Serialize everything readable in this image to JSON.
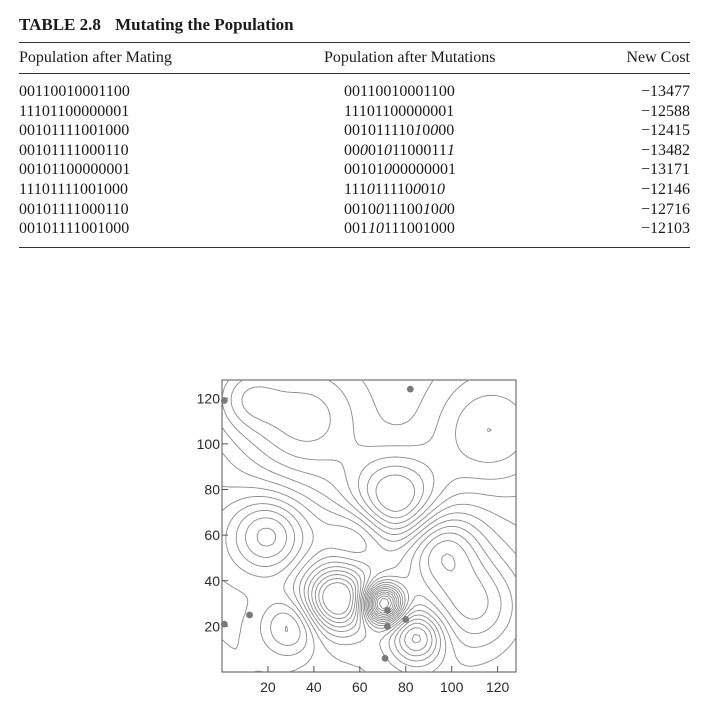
{
  "table": {
    "number": "TABLE 2.8",
    "title": "Mutating the Population",
    "headers": [
      "Population after Mating",
      "Population after Mutations",
      "New Cost"
    ],
    "rows": [
      {
        "mating": "00110010001100",
        "mutation": [
          [
            "00110010001100",
            false
          ]
        ],
        "cost": "−13477"
      },
      {
        "mating": "11101100000001",
        "mutation": [
          [
            "11101100000001",
            false
          ]
        ],
        "cost": "−12588"
      },
      {
        "mating": "00101111001000",
        "mutation": [
          [
            "001011110",
            false
          ],
          [
            "1",
            true
          ],
          [
            "0",
            false
          ],
          [
            "0",
            true
          ],
          [
            "00",
            false
          ]
        ],
        "cost": "−12415"
      },
      {
        "mating": "00101111000110",
        "mutation": [
          [
            "00",
            false
          ],
          [
            "0",
            true
          ],
          [
            "01",
            false
          ],
          [
            "0",
            true
          ],
          [
            "1100011",
            false
          ],
          [
            "1",
            true
          ]
        ],
        "cost": "−13482"
      },
      {
        "mating": "00101100000001",
        "mutation": [
          [
            "00101",
            false
          ],
          [
            "0",
            true
          ],
          [
            "00000001",
            false
          ]
        ],
        "cost": "−13171"
      },
      {
        "mating": "11101111001000",
        "mutation": [
          [
            "111",
            false
          ],
          [
            "0",
            true
          ],
          [
            "11110",
            false
          ],
          [
            "0",
            true
          ],
          [
            "01",
            false
          ],
          [
            "0",
            true
          ]
        ],
        "cost": "−12146"
      },
      {
        "mating": "00101111000110",
        "mutation": [
          [
            "0010",
            false
          ],
          [
            "0",
            true
          ],
          [
            "11100",
            false
          ],
          [
            "1",
            true
          ],
          [
            "0",
            false
          ],
          [
            "0",
            true
          ],
          [
            "0",
            false
          ]
        ],
        "cost": "−12716"
      },
      {
        "mating": "00101111001000",
        "mutation": [
          [
            "001",
            false
          ],
          [
            "1",
            true
          ],
          [
            "0",
            true
          ],
          [
            "111001000",
            false
          ]
        ],
        "cost": "−12103"
      }
    ]
  },
  "chart_data": {
    "type": "contour",
    "xlim": [
      0,
      128
    ],
    "ylim": [
      0,
      128
    ],
    "xticks": [
      20,
      40,
      60,
      80,
      100,
      120
    ],
    "yticks": [
      20,
      40,
      60,
      80,
      100,
      120
    ],
    "grid": false,
    "points": [
      {
        "x": 1,
        "y": 119
      },
      {
        "x": 82,
        "y": 124
      },
      {
        "x": 12,
        "y": 25
      },
      {
        "x": 1,
        "y": 21
      },
      {
        "x": 72,
        "y": 27
      },
      {
        "x": 72,
        "y": 20
      },
      {
        "x": 80,
        "y": 23
      },
      {
        "x": 71,
        "y": 6
      }
    ],
    "marker_color": "#7a7a7a",
    "line_color": "#8a8a8a"
  }
}
